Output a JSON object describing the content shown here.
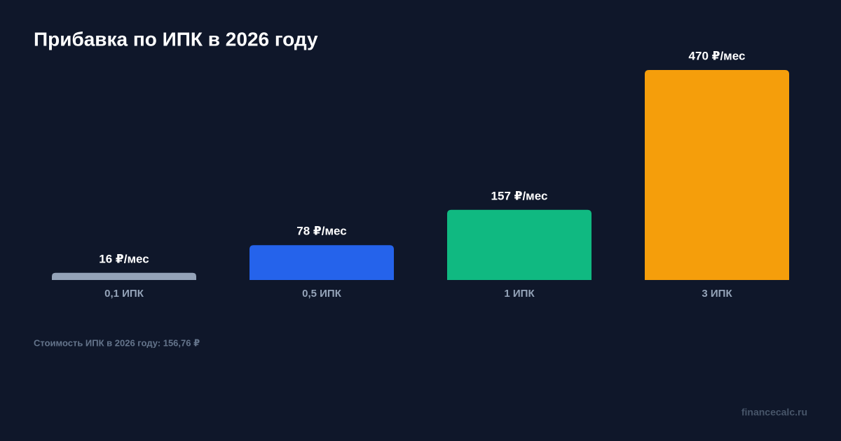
{
  "chart_data": {
    "type": "bar",
    "title": "Прибавка по ИПК в 2026 году",
    "categories": [
      "0,1 ИПК",
      "0,5 ИПК",
      "1 ИПК",
      "3 ИПК"
    ],
    "values": [
      16,
      78,
      157,
      470
    ],
    "value_labels": [
      "16 ₽/мес",
      "78 ₽/мес",
      "157 ₽/мес",
      "470 ₽/мес"
    ],
    "colors": [
      "#94a3b8",
      "#2563eb",
      "#10b981",
      "#f59e0b"
    ],
    "note": "Стоимость ИПК в 2026 году: 156,76 ₽",
    "watermark": "financecalc.ru"
  }
}
